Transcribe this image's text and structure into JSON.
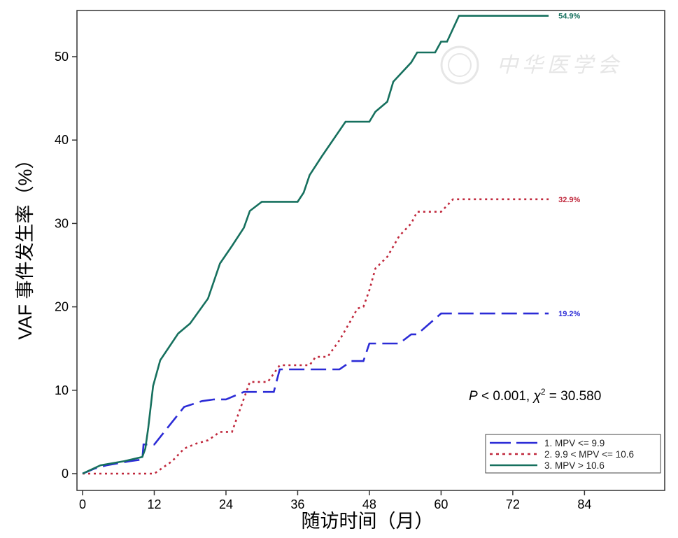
{
  "chart_data": {
    "type": "line",
    "title": "",
    "xlabel": "随访时间（月）",
    "ylabel": "VAF 事件发生率（%）",
    "xlim": [
      -1,
      97
    ],
    "ylim": [
      0,
      55.5
    ],
    "xticks": [
      0,
      12,
      24,
      36,
      48,
      60,
      72,
      84
    ],
    "yticks": [
      0,
      10,
      20,
      30,
      40,
      50
    ],
    "grid": false,
    "legend_position": "bottom-right",
    "annotation": "P < 0.001, χ² = 30.580",
    "annotation_parts": {
      "p": "P",
      "rest": " < 0.001, ",
      "chi": "χ",
      "sup": "2",
      "value": " = 30.580"
    },
    "watermark": "中华医学会",
    "series": [
      {
        "name": "1. MPV <= 9.9",
        "color": "#2b2bd6",
        "style": "dash",
        "end_label": "19.2%",
        "points": [
          [
            0,
            0
          ],
          [
            2,
            0.6
          ],
          [
            4,
            1
          ],
          [
            8,
            1.5
          ],
          [
            10,
            1.7
          ],
          [
            10.2,
            3.5
          ],
          [
            12,
            3.5
          ],
          [
            17,
            8
          ],
          [
            20,
            8.7
          ],
          [
            22,
            8.9
          ],
          [
            24,
            8.9
          ],
          [
            27,
            9.8
          ],
          [
            32,
            9.8
          ],
          [
            33,
            12.5
          ],
          [
            43,
            12.5
          ],
          [
            45,
            13.5
          ],
          [
            47,
            13.5
          ],
          [
            48,
            15.6
          ],
          [
            53,
            15.6
          ],
          [
            55,
            16.7
          ],
          [
            56,
            16.7
          ],
          [
            60,
            19.2
          ],
          [
            78,
            19.2
          ]
        ]
      },
      {
        "name": "2. 9.9 < MPV <= 10.6",
        "color": "#c0283c",
        "style": "dot",
        "end_label": "32.9%",
        "points": [
          [
            0,
            0
          ],
          [
            12,
            0
          ],
          [
            15,
            1.5
          ],
          [
            17,
            3
          ],
          [
            19,
            3.6
          ],
          [
            21,
            4
          ],
          [
            23,
            5
          ],
          [
            25,
            5
          ],
          [
            26,
            7
          ],
          [
            28,
            11
          ],
          [
            31,
            11
          ],
          [
            32,
            12
          ],
          [
            33,
            13
          ],
          [
            38,
            13
          ],
          [
            39,
            14
          ],
          [
            41,
            14
          ],
          [
            43,
            16
          ],
          [
            45,
            18.5
          ],
          [
            46,
            19.8
          ],
          [
            47,
            20
          ],
          [
            48,
            22
          ],
          [
            49,
            24.6
          ],
          [
            51,
            26
          ],
          [
            53,
            28.5
          ],
          [
            55,
            30
          ],
          [
            56,
            31.4
          ],
          [
            60,
            31.4
          ],
          [
            62,
            32.9
          ],
          [
            78,
            32.9
          ]
        ]
      },
      {
        "name": "3. MPV > 10.6",
        "color": "#16705e",
        "style": "solid",
        "end_label": "54.9%",
        "points": [
          [
            0,
            0
          ],
          [
            3,
            1
          ],
          [
            7,
            1.5
          ],
          [
            10,
            2
          ],
          [
            10.5,
            3
          ],
          [
            11,
            5.5
          ],
          [
            11.8,
            10.5
          ],
          [
            13,
            13.6
          ],
          [
            16,
            16.8
          ],
          [
            18,
            18
          ],
          [
            21,
            21
          ],
          [
            23,
            25.2
          ],
          [
            25,
            27.3
          ],
          [
            27,
            29.5
          ],
          [
            28,
            31.5
          ],
          [
            30,
            32.6
          ],
          [
            36,
            32.6
          ],
          [
            37,
            33.7
          ],
          [
            38,
            35.8
          ],
          [
            40,
            38
          ],
          [
            44,
            42.2
          ],
          [
            48,
            42.2
          ],
          [
            49,
            43.4
          ],
          [
            51,
            44.6
          ],
          [
            52,
            47
          ],
          [
            55,
            49.3
          ],
          [
            56,
            50.5
          ],
          [
            59,
            50.5
          ],
          [
            60,
            51.8
          ],
          [
            61,
            51.8
          ],
          [
            63,
            54.9
          ],
          [
            78,
            54.9
          ]
        ]
      }
    ]
  }
}
